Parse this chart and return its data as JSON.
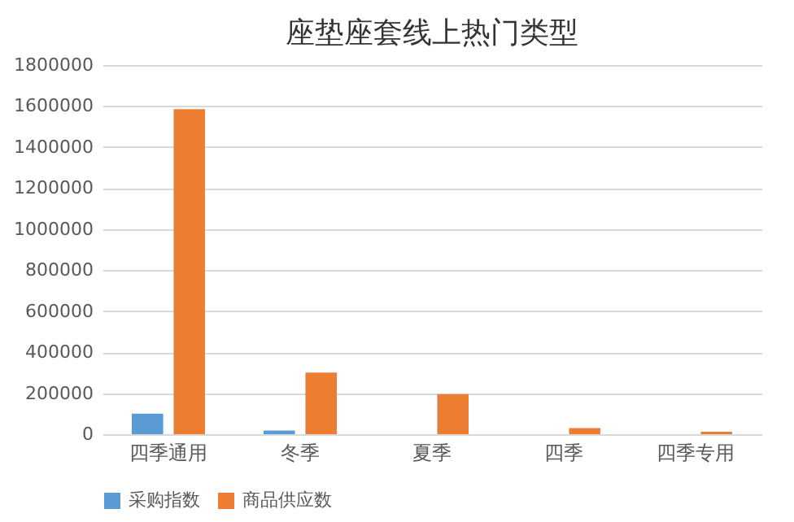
{
  "chart_data": {
    "type": "bar",
    "title": "座垫座套线上热门类型",
    "categories": [
      "四季通用",
      "冬季",
      "夏季",
      "四季",
      "四季专用"
    ],
    "series": [
      {
        "name": "采购指数",
        "color": "#5b9bd5",
        "values": [
          100000,
          18000,
          null,
          null,
          null
        ]
      },
      {
        "name": "商品供应数",
        "color": "#ed7d31",
        "values": [
          1585000,
          300000,
          195000,
          30000,
          12000
        ]
      }
    ],
    "ylim": [
      0,
      1800000
    ],
    "yticks": [
      0,
      200000,
      400000,
      600000,
      800000,
      1000000,
      1200000,
      1400000,
      1600000,
      1800000
    ],
    "grid": "y",
    "legend": "bottom"
  }
}
